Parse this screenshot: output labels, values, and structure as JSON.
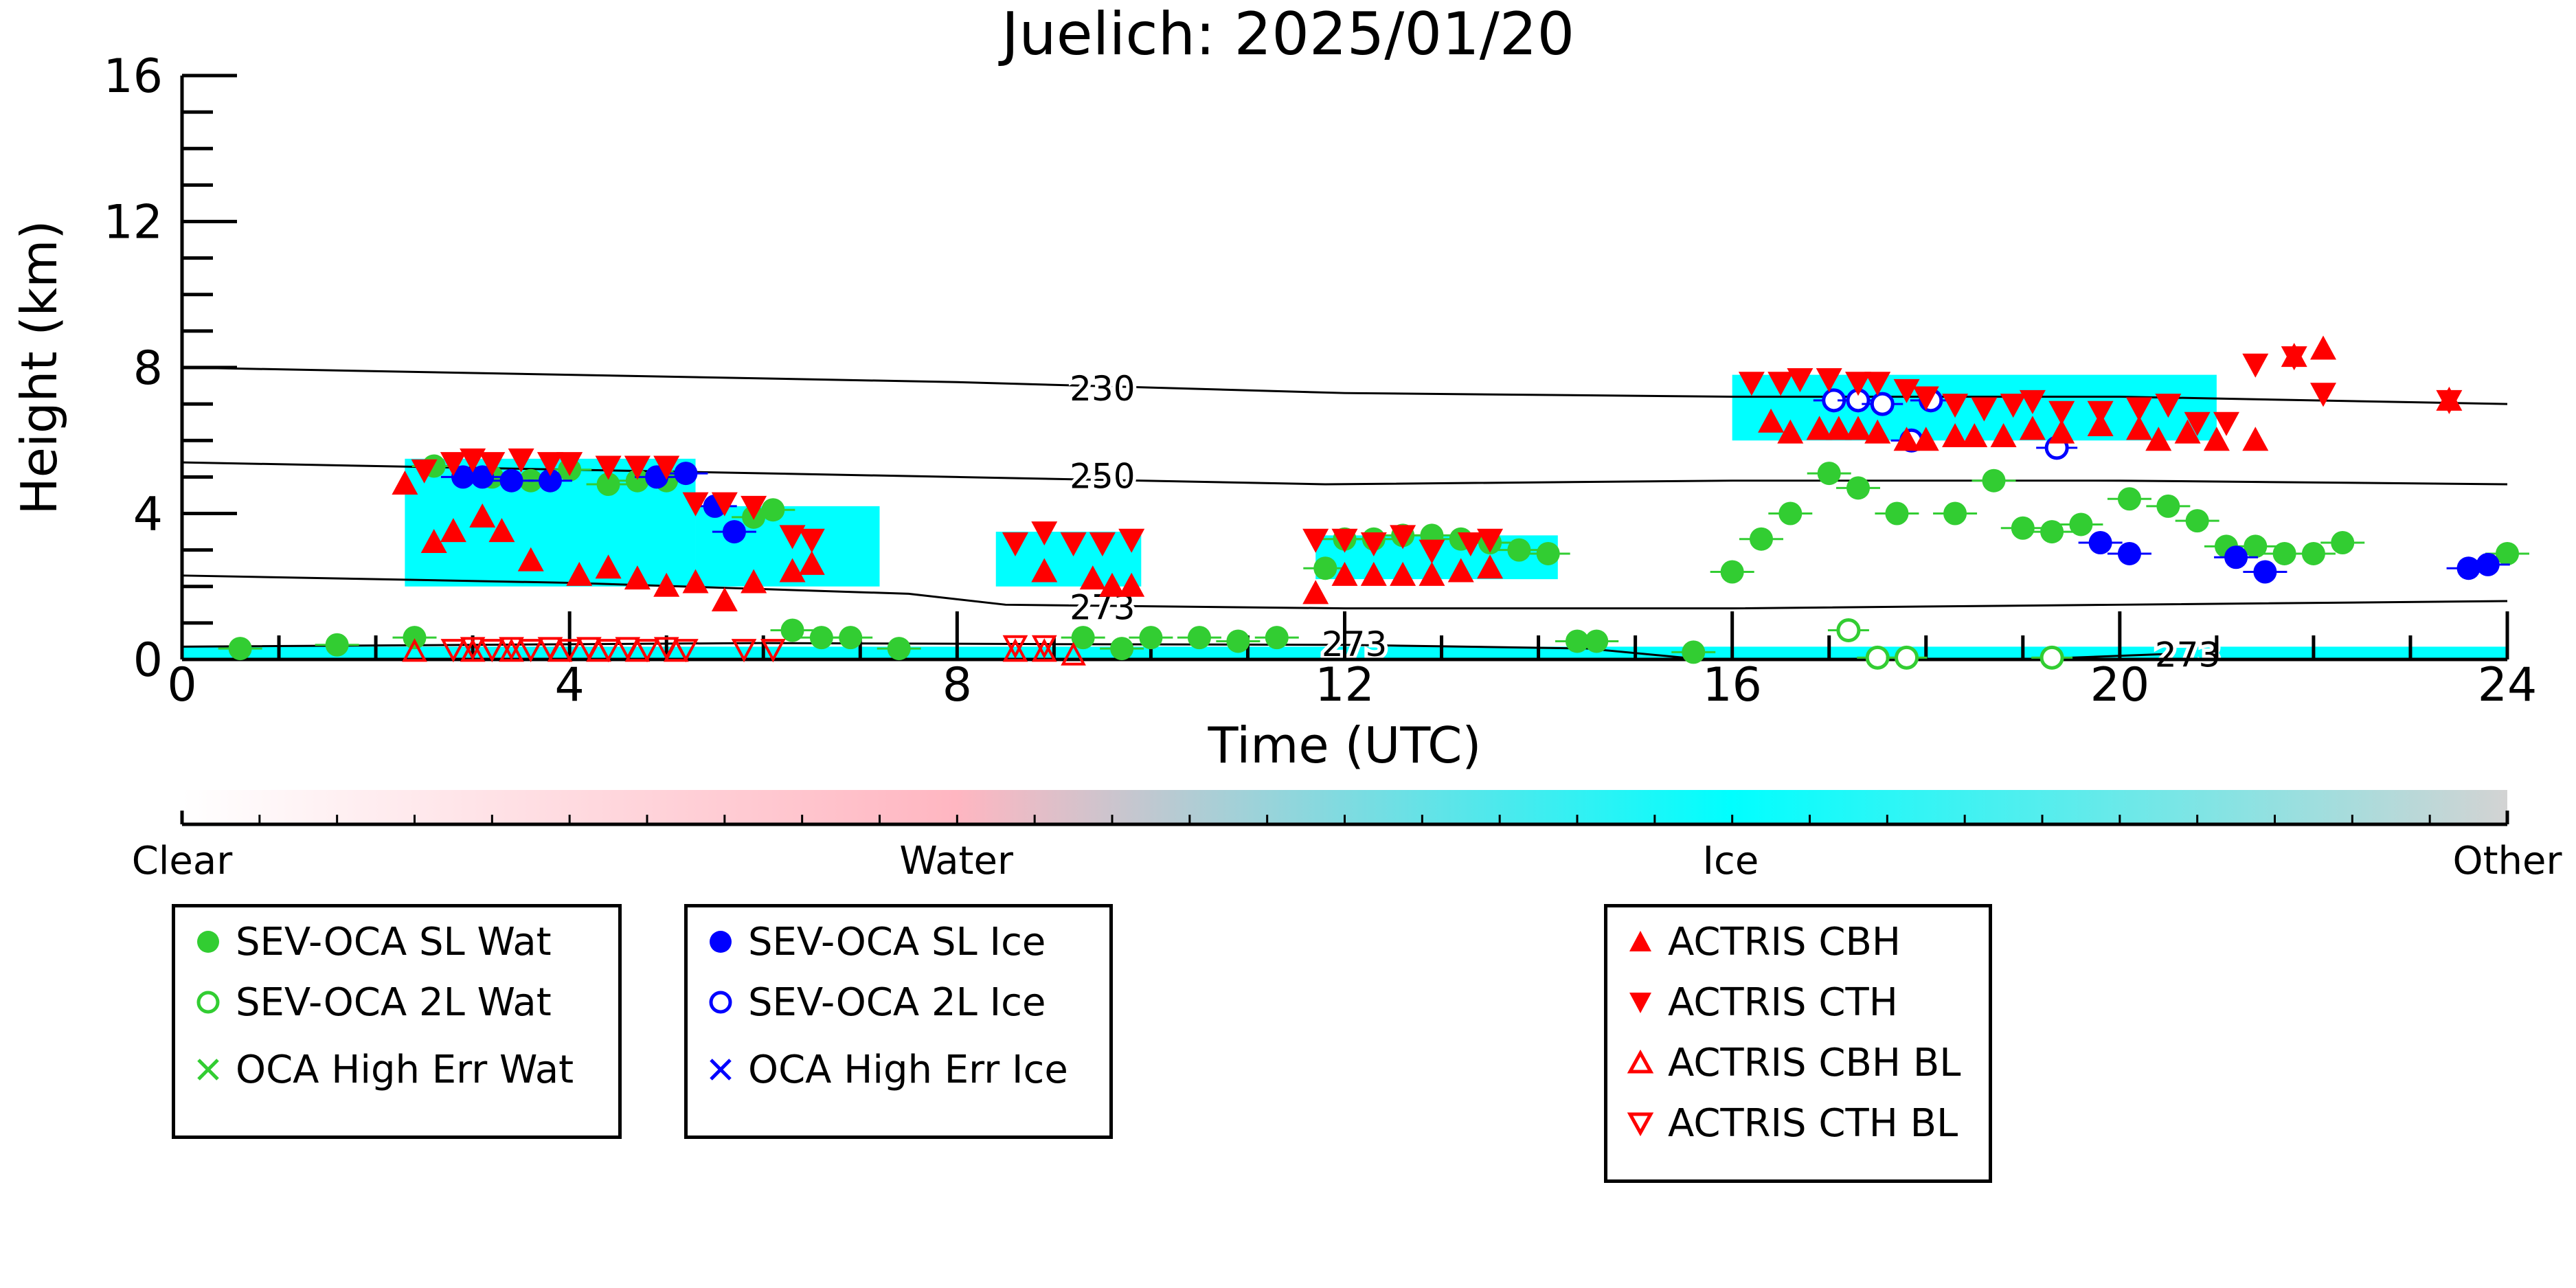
{
  "chart_data": {
    "type": "scatter",
    "title": "Juelich: 2025/01/20",
    "xlabel": "Time (UTC)",
    "ylabel": "Height (km)",
    "xlim": [
      0,
      24
    ],
    "ylim": [
      0,
      16
    ],
    "xticks": [
      "0",
      "4",
      "8",
      "12",
      "16",
      "20",
      "24"
    ],
    "xtick_values": [
      0,
      4,
      8,
      12,
      16,
      20,
      24
    ],
    "yticks": [
      "0",
      "4",
      "8",
      "12",
      "16"
    ],
    "ytick_values": [
      0,
      4,
      8,
      12,
      16
    ],
    "colorbar": {
      "labels": [
        "Clear",
        "Water",
        "Ice",
        "Other"
      ],
      "positions": [
        0,
        0.333,
        0.666,
        1.0
      ],
      "colors": [
        "#ffffff",
        "#ffb6c1",
        "#00ffff",
        "#d3d3d3"
      ]
    },
    "contours": [
      {
        "label": "230",
        "points": [
          [
            0,
            8.0
          ],
          [
            4,
            7.8
          ],
          [
            8,
            7.6
          ],
          [
            12,
            7.3
          ],
          [
            16,
            7.2
          ],
          [
            20,
            7.2
          ],
          [
            24,
            7.0
          ]
        ],
        "label_at": [
          9.5,
          7.4
        ]
      },
      {
        "label": "250",
        "points": [
          [
            0,
            5.4
          ],
          [
            4,
            5.2
          ],
          [
            8,
            5.0
          ],
          [
            11.8,
            4.8
          ],
          [
            16,
            4.9
          ],
          [
            20,
            4.9
          ],
          [
            24,
            4.8
          ]
        ],
        "label_at": [
          9.5,
          5.0
        ]
      },
      {
        "label": "273",
        "points": [
          [
            0,
            2.3
          ],
          [
            4,
            2.1
          ],
          [
            7.5,
            1.8
          ],
          [
            8.5,
            1.5
          ],
          [
            12,
            1.4
          ],
          [
            16,
            1.4
          ],
          [
            20,
            1.5
          ],
          [
            24,
            1.6
          ]
        ],
        "label_at": [
          9.5,
          1.4
        ]
      },
      {
        "label": "273",
        "points": [
          [
            0,
            0.35
          ],
          [
            6,
            0.45
          ],
          [
            9,
            0.42
          ],
          [
            12,
            0.4
          ],
          [
            14.5,
            0.3
          ],
          [
            15.5,
            0.05
          ]
        ],
        "label_at": [
          12.1,
          0.4
        ]
      },
      {
        "label": "273",
        "points": [
          [
            19.5,
            0.05
          ],
          [
            20.5,
            0.15
          ]
        ],
        "label_at": [
          20.7,
          0.1
        ]
      }
    ],
    "cloud_mask": [
      {
        "phase": "Ice",
        "x": [
          2.3,
          5.3
        ],
        "y": [
          2.0,
          5.5
        ]
      },
      {
        "phase": "Ice",
        "x": [
          5.3,
          7.2
        ],
        "y": [
          2.0,
          4.2
        ]
      },
      {
        "phase": "Ice",
        "x": [
          8.4,
          9.9
        ],
        "y": [
          2.0,
          3.5
        ]
      },
      {
        "phase": "Ice",
        "x": [
          11.7,
          14.2
        ],
        "y": [
          2.2,
          3.4
        ]
      },
      {
        "phase": "Ice",
        "x": [
          16.0,
          21.0
        ],
        "y": [
          6.0,
          7.8
        ]
      },
      {
        "phase": "Ice",
        "x": [
          0.0,
          24.0
        ],
        "y": [
          0.0,
          0.35
        ]
      }
    ],
    "series": [
      {
        "name": "SEV-OCA SL Wat",
        "color": "#32cd32",
        "marker": "filled-circle",
        "x": [
          0.6,
          1.6,
          2.4,
          2.6,
          3.2,
          3.6,
          4.0,
          4.4,
          4.7,
          5.0,
          5.9,
          6.1,
          6.3,
          6.6,
          6.9,
          7.4,
          9.3,
          9.7,
          10.0,
          10.5,
          10.9,
          11.3,
          11.8,
          12.0,
          12.3,
          12.6,
          12.9,
          13.2,
          13.5,
          13.8,
          14.1,
          14.4,
          14.6,
          15.6,
          16.0,
          16.3,
          16.6,
          17.0,
          17.3,
          17.7,
          18.3,
          18.7,
          19.0,
          19.3,
          19.6,
          20.1,
          20.5,
          20.8,
          21.1,
          21.4,
          21.7,
          22.0,
          22.3,
          24.0
        ],
        "y": [
          0.3,
          0.4,
          0.6,
          5.3,
          5.0,
          4.9,
          5.2,
          4.8,
          4.9,
          4.9,
          3.9,
          4.1,
          0.8,
          0.6,
          0.6,
          0.3,
          0.6,
          0.3,
          0.6,
          0.6,
          0.5,
          0.6,
          2.5,
          3.3,
          3.3,
          3.4,
          3.4,
          3.3,
          3.2,
          3.0,
          2.9,
          0.5,
          0.5,
          0.2,
          2.4,
          3.3,
          4.0,
          5.1,
          4.7,
          4.0,
          4.0,
          4.9,
          3.6,
          3.5,
          3.7,
          4.4,
          4.2,
          3.8,
          3.1,
          3.1,
          2.9,
          2.9,
          3.2,
          2.9
        ]
      },
      {
        "name": "SEV-OCA 2L Wat",
        "color": "#32cd32",
        "marker": "open-circle",
        "x": [
          17.2,
          17.5,
          17.8,
          19.3
        ],
        "y": [
          0.8,
          0.05,
          0.05,
          0.05
        ]
      },
      {
        "name": "OCA High Err Wat",
        "color": "#32cd32",
        "marker": "x",
        "x": [],
        "y": []
      },
      {
        "name": "SEV-OCA SL Ice",
        "color": "#0000ff",
        "marker": "filled-circle",
        "x": [
          2.9,
          3.1,
          3.4,
          3.8,
          4.9,
          5.2,
          5.5,
          5.7,
          19.8,
          20.1,
          21.2,
          21.5,
          23.6,
          23.8
        ],
        "y": [
          5.0,
          5.0,
          4.9,
          4.9,
          5.0,
          5.1,
          4.2,
          3.5,
          3.2,
          2.9,
          2.8,
          2.4,
          2.5,
          2.6
        ]
      },
      {
        "name": "SEV-OCA 2L Ice",
        "color": "#0000ff",
        "marker": "open-circle",
        "x": [
          17.05,
          17.3,
          17.55,
          17.85,
          18.05,
          19.35
        ],
        "y": [
          7.1,
          7.1,
          7.0,
          6.0,
          7.1,
          5.8
        ]
      },
      {
        "name": "OCA High Err Ice",
        "color": "#0000ff",
        "marker": "x",
        "x": [],
        "y": []
      },
      {
        "name": "ACTRIS CBH",
        "color": "#ff0000",
        "marker": "filled-triangle-up",
        "x": [
          2.3,
          2.6,
          2.8,
          3.1,
          3.3,
          3.6,
          4.1,
          4.4,
          4.7,
          5.0,
          5.3,
          5.6,
          5.9,
          6.3,
          6.5,
          8.9,
          9.4,
          9.6,
          9.8,
          11.7,
          12.0,
          12.3,
          12.6,
          12.9,
          13.2,
          13.5,
          16.4,
          16.6,
          16.9,
          17.1,
          17.3,
          17.5,
          17.8,
          18.0,
          18.3,
          18.5,
          18.8,
          19.1,
          19.4,
          19.8,
          20.2,
          20.4,
          20.7,
          21.0,
          21.4,
          21.8,
          22.1,
          23.4
        ],
        "y": [
          4.8,
          3.2,
          3.5,
          3.9,
          3.5,
          2.7,
          2.3,
          2.5,
          2.2,
          2.0,
          2.1,
          1.6,
          2.1,
          2.4,
          2.6,
          2.4,
          2.2,
          2.0,
          2.0,
          1.8,
          2.3,
          2.3,
          2.3,
          2.3,
          2.4,
          2.5,
          6.5,
          6.2,
          6.3,
          6.3,
          6.3,
          6.2,
          6.0,
          6.0,
          6.1,
          6.1,
          6.1,
          6.3,
          6.2,
          6.4,
          6.3,
          6.0,
          6.2,
          6.0,
          6.0,
          8.3,
          8.5,
          7.1
        ]
      },
      {
        "name": "ACTRIS CTH",
        "color": "#ff0000",
        "marker": "filled-triangle-down",
        "x": [
          2.5,
          2.8,
          3.0,
          3.2,
          3.5,
          3.8,
          4.0,
          4.4,
          4.7,
          5.0,
          5.3,
          5.6,
          5.9,
          6.3,
          6.5,
          8.6,
          8.9,
          9.2,
          9.5,
          9.8,
          11.7,
          12.0,
          12.3,
          12.6,
          12.9,
          13.3,
          13.5,
          16.2,
          16.5,
          16.7,
          17.0,
          17.3,
          17.5,
          17.8,
          18.0,
          18.3,
          18.6,
          18.9,
          19.1,
          19.4,
          19.8,
          20.2,
          20.5,
          20.8,
          21.1,
          21.4,
          21.8,
          22.1,
          23.4
        ],
        "y": [
          5.2,
          5.4,
          5.5,
          5.4,
          5.5,
          5.4,
          5.4,
          5.3,
          5.3,
          5.3,
          4.3,
          4.3,
          4.2,
          3.4,
          3.3,
          3.2,
          3.5,
          3.2,
          3.2,
          3.3,
          3.3,
          3.3,
          3.2,
          3.4,
          3.0,
          3.2,
          3.3,
          7.6,
          7.6,
          7.7,
          7.7,
          7.6,
          7.6,
          7.4,
          7.2,
          7.0,
          6.9,
          7.0,
          7.1,
          6.8,
          6.8,
          6.9,
          7.0,
          6.5,
          6.5,
          8.1,
          8.3,
          7.3,
          7.1
        ]
      },
      {
        "name": "ACTRIS CBH BL",
        "color": "#ff0000",
        "marker": "open-triangle-up",
        "x": [
          2.4,
          3.0,
          3.4,
          3.9,
          4.3,
          4.7,
          5.1,
          8.6,
          8.9,
          9.2
        ],
        "y": [
          0.2,
          0.2,
          0.2,
          0.2,
          0.2,
          0.2,
          0.2,
          0.2,
          0.2,
          0.1
        ]
      },
      {
        "name": "ACTRIS CTH BL",
        "color": "#ff0000",
        "marker": "open-triangle-down",
        "x": [
          2.8,
          3.0,
          3.2,
          3.4,
          3.6,
          3.8,
          4.0,
          4.2,
          4.4,
          4.6,
          4.8,
          5.0,
          5.2,
          5.8,
          6.1,
          8.6,
          8.9
        ],
        "y": [
          0.3,
          0.35,
          0.3,
          0.35,
          0.3,
          0.35,
          0.3,
          0.35,
          0.3,
          0.35,
          0.3,
          0.35,
          0.3,
          0.3,
          0.3,
          0.4,
          0.4
        ]
      }
    ]
  },
  "legends": [
    {
      "items": [
        "SEV-OCA SL Wat",
        "SEV-OCA 2L Wat",
        "OCA High Err Wat"
      ]
    },
    {
      "items": [
        "SEV-OCA SL Ice",
        "SEV-OCA 2L Ice",
        "OCA High Err Ice"
      ]
    },
    {
      "items": [
        "ACTRIS CBH",
        "ACTRIS CTH",
        "ACTRIS CBH BL",
        "ACTRIS CTH BL"
      ]
    }
  ]
}
